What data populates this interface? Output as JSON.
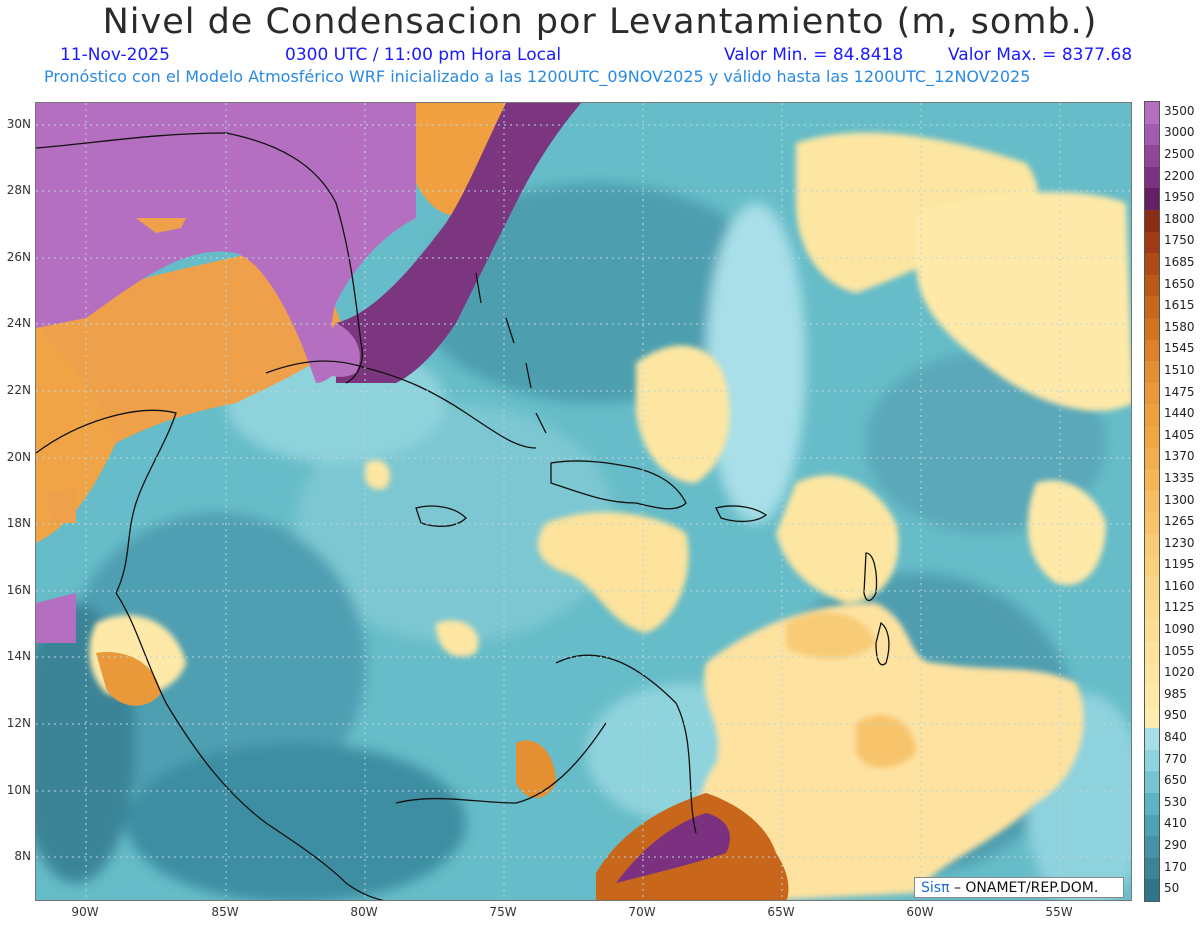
{
  "header": {
    "title": "Nivel de Condensacion por Levantamiento (m, somb.)",
    "date": "11-Nov-2025",
    "time": "0300 UTC / 11:00 pm Hora Local",
    "valmin": "Valor Min. = 84.8418",
    "valmax": "Valor Max. = 8377.68",
    "forecast": "Pronóstico con el Modelo Atmosférico WRF inicializado a las 1200UTC_09NOV2025 y válido hasta las  1200UTC_12NOV2025"
  },
  "axes": {
    "lat_labels": [
      "30N",
      "28N",
      "26N",
      "24N",
      "22N",
      "20N",
      "18N",
      "16N",
      "14N",
      "12N",
      "10N",
      "8N"
    ],
    "lon_labels": [
      "90W",
      "85W",
      "80W",
      "75W",
      "70W",
      "65W",
      "60W",
      "55W"
    ]
  },
  "colorbar": {
    "levels": [
      "3500",
      "3000",
      "2500",
      "2200",
      "1950",
      "1800",
      "1750",
      "1685",
      "1650",
      "1615",
      "1580",
      "1545",
      "1510",
      "1475",
      "1440",
      "1405",
      "1370",
      "1335",
      "1300",
      "1265",
      "1230",
      "1195",
      "1160",
      "1125",
      "1090",
      "1055",
      "1020",
      "985",
      "950",
      "840",
      "770",
      "650",
      "530",
      "410",
      "290",
      "170",
      "50"
    ],
    "colors": [
      "#b56fc0",
      "#a25bb0",
      "#8f4598",
      "#7b3080",
      "#651f64",
      "#8a2d16",
      "#9e3a14",
      "#b04916",
      "#bd5818",
      "#c9661c",
      "#d47420",
      "#dd8228",
      "#e38f32",
      "#e9993a",
      "#ee9f3e",
      "#f1a644",
      "#f2ad4c",
      "#f4b556",
      "#f6bd62",
      "#f7c46c",
      "#f8cb76",
      "#f9d27f",
      "#fad787",
      "#fbdb8e",
      "#fcdf95",
      "#fde39c",
      "#fde6a2",
      "#fee9a8",
      "#feecae",
      "#a8dfe8",
      "#8ed2de",
      "#74c4d1",
      "#5eb3c2",
      "#4ea3b3",
      "#4393a4",
      "#3a8496",
      "#2f7587"
    ]
  },
  "credit": {
    "logo": "Sisπ",
    "text": "– ONAMET/REP.DOM."
  }
}
